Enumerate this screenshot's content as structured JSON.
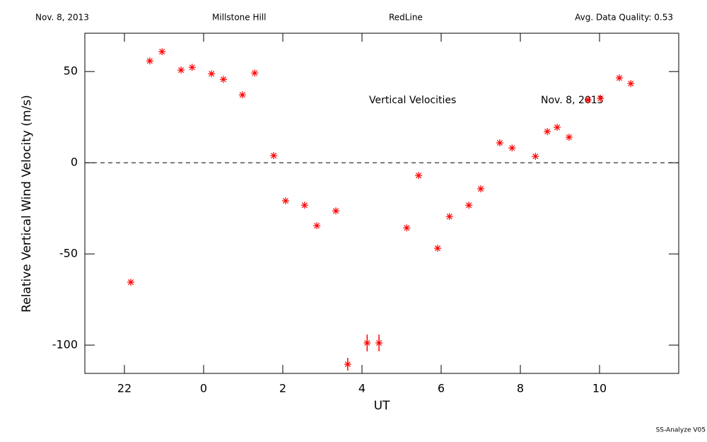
{
  "chart_data": {
    "type": "scatter",
    "header": [
      "Nov. 8, 2013",
      "Millstone Hill",
      "RedLine",
      "Avg. Data Quality: 0.53"
    ],
    "annotations": [
      "Vertical Velocities",
      "Nov. 8, 2013"
    ],
    "footer": "SS-Analyze V05",
    "x_label": "UT",
    "y_label": "Relative Vertical Wind Velocity (m/s)",
    "xlim": [
      -3,
      12
    ],
    "ylim": [
      -115.5,
      71
    ],
    "xticks": [
      {
        "value": -2,
        "label": "22"
      },
      0,
      2,
      4,
      6,
      8,
      10
    ],
    "yticks": [
      -100,
      -50,
      0,
      50
    ],
    "hline": 0,
    "color": "#ff0000",
    "x": [
      -1.84,
      -1.36,
      -1.05,
      -0.57,
      -0.29,
      0.2,
      0.5,
      0.98,
      1.29,
      1.77,
      2.07,
      2.55,
      2.86,
      3.34,
      3.64,
      4.13,
      4.43,
      5.13,
      5.43,
      5.91,
      6.21,
      6.7,
      7.0,
      7.48,
      7.79,
      8.38,
      8.68,
      8.93,
      9.23,
      9.71,
      10.02,
      10.5,
      10.79
    ],
    "values": [
      -65.5,
      55.8,
      60.9,
      50.8,
      52.3,
      48.8,
      45.7,
      37.2,
      49.2,
      3.9,
      -20.9,
      -23.3,
      -34.5,
      -26.4,
      -110.5,
      -98.8,
      -98.8,
      -35.7,
      -7.0,
      -46.9,
      -29.5,
      -23.3,
      -14.3,
      10.9,
      8.1,
      3.5,
      17.1,
      19.4,
      14.0,
      34.5,
      35.3,
      46.5,
      43.4
    ],
    "errors": [
      null,
      null,
      null,
      null,
      null,
      null,
      null,
      null,
      null,
      null,
      null,
      null,
      null,
      null,
      3.5,
      4.6,
      4.6,
      null,
      null,
      null,
      null,
      null,
      null,
      null,
      null,
      null,
      null,
      null,
      null,
      null,
      null,
      null,
      null
    ]
  }
}
